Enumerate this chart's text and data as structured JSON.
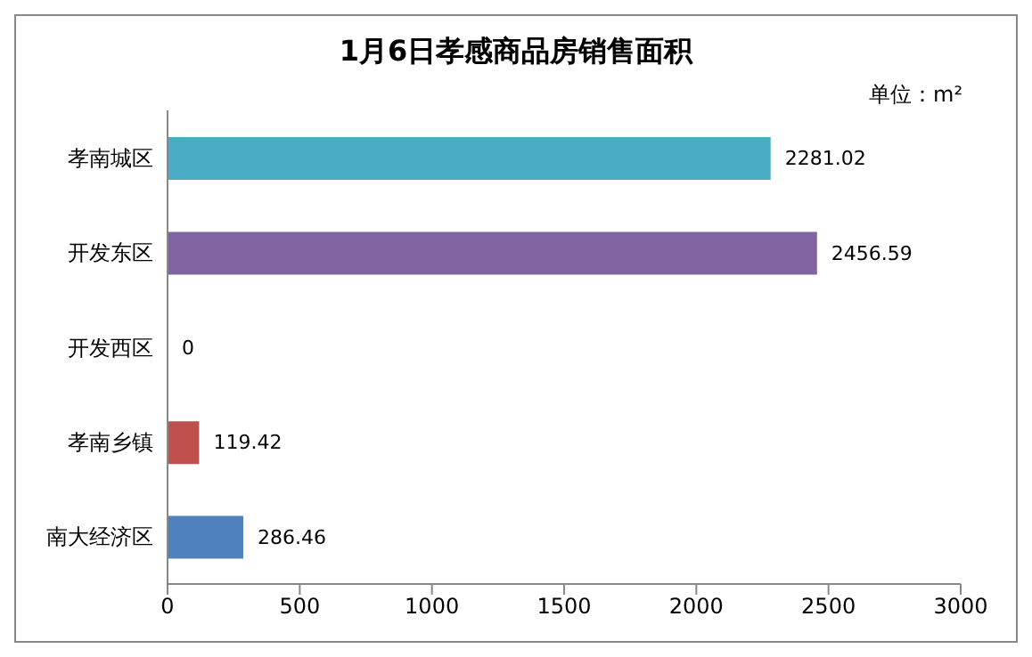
{
  "chart_data": {
    "type": "bar",
    "orientation": "horizontal",
    "title": "1月6日孝感商品房销售面积",
    "annotations": [
      "单位：m²"
    ],
    "categories": [
      "孝南城区",
      "开发东区",
      "开发西区",
      "孝南乡镇",
      "南大经济区"
    ],
    "values": [
      2281.02,
      2456.59,
      0,
      119.42,
      286.46
    ],
    "colors": [
      "#4bacc6",
      "#8064a2",
      "#9bbb59",
      "#c0504d",
      "#4f81bd"
    ],
    "xlim": [
      0,
      3000
    ],
    "xticks": [
      0,
      500,
      1000,
      1500,
      2000,
      2500,
      3000
    ],
    "data_labels": true
  }
}
